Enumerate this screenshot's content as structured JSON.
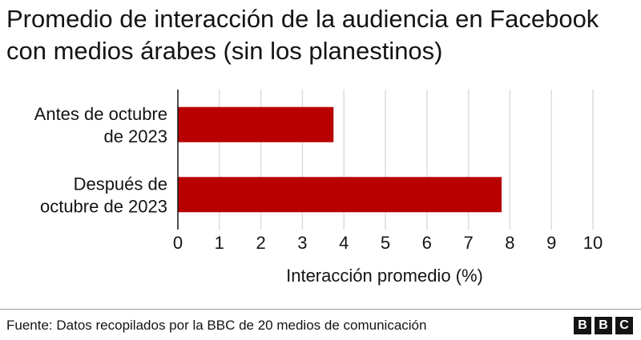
{
  "chart_data": {
    "type": "bar",
    "orientation": "horizontal",
    "title": "Promedio de interacción de la audiencia en Facebook con medios árabes (sin los planestinos)",
    "categories": [
      [
        "Antes de octubre",
        "de 2023"
      ],
      [
        "Después de",
        "octubre de 2023"
      ]
    ],
    "values": [
      3.75,
      7.8
    ],
    "xlabel": "Interacción promedio (%)",
    "ylabel": "",
    "xlim": [
      0,
      10
    ],
    "xticks": [
      "0",
      "1",
      "2",
      "3",
      "4",
      "5",
      "6",
      "7",
      "8",
      "9",
      "10"
    ],
    "grid": true,
    "bar_color": "#b80000"
  },
  "footer": {
    "source": "Fuente: Datos recopilados por la BBC de 20 medios de comunicación",
    "logo": [
      "B",
      "B",
      "C"
    ]
  }
}
